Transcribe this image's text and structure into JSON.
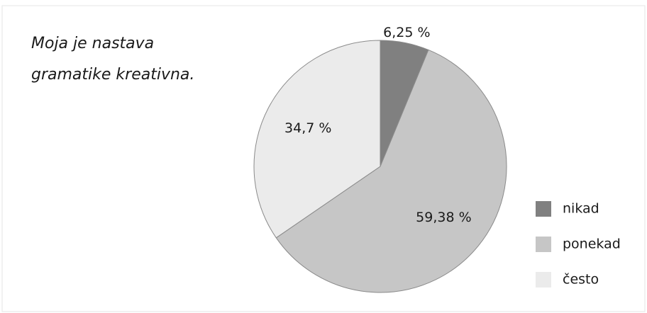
{
  "chart_data": {
    "type": "pie",
    "title": [
      "Moja je nastava",
      "gramatike kreativna."
    ],
    "categories": [
      "nikad",
      "ponekad",
      "često"
    ],
    "values": [
      6.25,
      59.38,
      34.7
    ],
    "value_labels": [
      "6,25 %",
      "59,38 %",
      "34,7 %"
    ],
    "colors": [
      "#808080",
      "#c6c6c6",
      "#ebebeb"
    ],
    "legend": "right"
  }
}
